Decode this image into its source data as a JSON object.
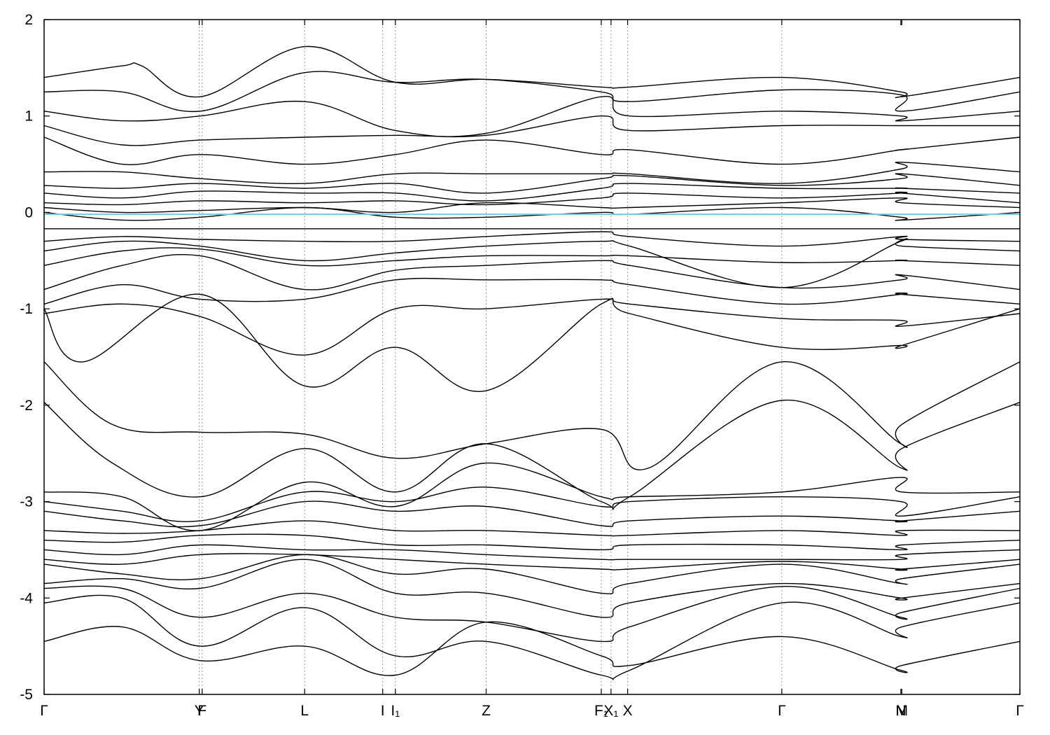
{
  "chart_data": {
    "type": "line",
    "title": "",
    "xlabel": "",
    "ylabel": "",
    "ylim": [
      -5,
      2
    ],
    "xlim": [
      0,
      1
    ],
    "yticks": [
      -5,
      -4,
      -3,
      -2,
      -1,
      0,
      1,
      2
    ],
    "ytick_labels": [
      "-5",
      "-4",
      "-3",
      "-2",
      "-1",
      "0",
      "1",
      "2"
    ],
    "kpoints": [
      {
        "label": "Γ",
        "x": 0.0,
        "line": false
      },
      {
        "label": "Y",
        "x": 0.159,
        "line": true
      },
      {
        "label": "F",
        "x": 0.162,
        "line": true
      },
      {
        "label": "L",
        "x": 0.267,
        "line": true
      },
      {
        "label": "I",
        "x": 0.347,
        "line": true
      },
      {
        "label": "I₁",
        "x": 0.36,
        "line": true
      },
      {
        "label": "Z",
        "x": 0.453,
        "line": true
      },
      {
        "label": "F₁",
        "x": 0.571,
        "line": true
      },
      {
        "label": "X₁",
        "x": 0.581,
        "line": true
      },
      {
        "label": "X",
        "x": 0.598,
        "line": true
      },
      {
        "label": "Γ",
        "x": 0.756,
        "line": true
      },
      {
        "label": "N",
        "x": 0.878,
        "line": false
      },
      {
        "label": "M",
        "x": 0.879,
        "line": false
      },
      {
        "label": "Γ",
        "x": 1.0,
        "line": false
      }
    ],
    "fermi_level": -0.02,
    "fermi_color": "#7fc6d6",
    "grid": false,
    "series": [
      {
        "x": [
          0,
          0.08,
          0.16,
          0.267,
          0.36,
          0.453,
          0.571,
          0.6,
          0.756,
          0.878,
          0.879,
          1
        ],
        "y": [
          -4.45,
          -4.3,
          -4.65,
          -4.5,
          -4.8,
          -4.25,
          -4.6,
          -4.7,
          -4.4,
          -4.75,
          -4.7,
          -4.45
        ]
      },
      {
        "x": [
          0,
          0.08,
          0.16,
          0.267,
          0.36,
          0.453,
          0.571,
          0.6,
          0.756,
          0.878,
          0.879,
          1
        ],
        "y": [
          -4.05,
          -4.0,
          -4.5,
          -4.1,
          -4.6,
          -4.45,
          -4.8,
          -4.75,
          -4.05,
          -4.4,
          -4.3,
          -4.05
        ]
      },
      {
        "x": [
          0,
          0.08,
          0.16,
          0.267,
          0.36,
          0.453,
          0.571,
          0.6,
          0.756,
          0.878,
          0.879,
          1
        ],
        "y": [
          -3.9,
          -3.9,
          -4.2,
          -3.95,
          -4.2,
          -4.25,
          -4.45,
          -4.3,
          -3.88,
          -4.2,
          -4.15,
          -3.9
        ]
      },
      {
        "x": [
          0,
          0.08,
          0.16,
          0.267,
          0.36,
          0.453,
          0.571,
          0.6,
          0.756,
          0.878,
          0.879,
          1
        ],
        "y": [
          -3.85,
          -3.8,
          -3.9,
          -3.6,
          -3.95,
          -3.95,
          -4.2,
          -4.05,
          -3.85,
          -4.0,
          -4.0,
          -3.85
        ]
      },
      {
        "x": [
          0,
          0.08,
          0.16,
          0.267,
          0.36,
          0.453,
          0.571,
          0.6,
          0.756,
          0.878,
          0.879,
          1
        ],
        "y": [
          -3.65,
          -3.75,
          -3.8,
          -3.55,
          -3.75,
          -3.7,
          -3.95,
          -3.85,
          -3.65,
          -3.85,
          -3.8,
          -3.65
        ]
      },
      {
        "x": [
          0,
          0.08,
          0.16,
          0.267,
          0.36,
          0.453,
          0.571,
          0.6,
          0.756,
          0.878,
          0.879,
          1
        ],
        "y": [
          -3.6,
          -3.65,
          -3.55,
          -3.55,
          -3.6,
          -3.65,
          -3.7,
          -3.7,
          -3.62,
          -3.7,
          -3.7,
          -3.6
        ]
      },
      {
        "x": [
          0,
          0.08,
          0.16,
          0.267,
          0.36,
          0.453,
          0.571,
          0.6,
          0.756,
          0.878,
          0.879,
          1
        ],
        "y": [
          -3.5,
          -3.55,
          -3.45,
          -3.5,
          -3.5,
          -3.55,
          -3.6,
          -3.6,
          -3.6,
          -3.6,
          -3.55,
          -3.5
        ]
      },
      {
        "x": [
          0,
          0.08,
          0.16,
          0.267,
          0.36,
          0.453,
          0.571,
          0.6,
          0.756,
          0.878,
          0.879,
          1
        ],
        "y": [
          -3.4,
          -3.42,
          -3.35,
          -3.35,
          -3.45,
          -3.45,
          -3.5,
          -3.45,
          -3.45,
          -3.5,
          -3.45,
          -3.4
        ]
      },
      {
        "x": [
          0,
          0.08,
          0.16,
          0.267,
          0.36,
          0.453,
          0.571,
          0.6,
          0.756,
          0.878,
          0.879,
          1
        ],
        "y": [
          -3.3,
          -3.33,
          -3.3,
          -3.2,
          -3.3,
          -3.3,
          -3.35,
          -3.35,
          -3.3,
          -3.35,
          -3.3,
          -3.3
        ]
      },
      {
        "x": [
          0,
          0.08,
          0.16,
          0.267,
          0.36,
          0.453,
          0.571,
          0.6,
          0.756,
          0.878,
          0.879,
          1
        ],
        "y": [
          -3.1,
          -3.2,
          -3.25,
          -3.0,
          -3.1,
          -3.05,
          -3.25,
          -3.2,
          -3.15,
          -3.2,
          -3.2,
          -3.1
        ]
      },
      {
        "x": [
          0,
          0.08,
          0.16,
          0.267,
          0.36,
          0.453,
          0.571,
          0.6,
          0.756,
          0.878,
          0.879,
          1
        ],
        "y": [
          -3.0,
          -3.1,
          -3.2,
          -2.9,
          -3.0,
          -2.85,
          -3.05,
          -3.0,
          -2.95,
          -3.0,
          -3.15,
          -2.95
        ]
      },
      {
        "x": [
          0,
          0.08,
          0.16,
          0.267,
          0.36,
          0.453,
          0.571,
          0.6,
          0.756,
          0.878,
          0.879,
          1
        ],
        "y": [
          -2.9,
          -2.95,
          -3.3,
          -2.8,
          -3.05,
          -2.6,
          -2.95,
          -2.95,
          -2.9,
          -2.75,
          -2.9,
          -2.9
        ]
      },
      {
        "x": [
          0,
          0.07,
          0.16,
          0.267,
          0.36,
          0.453,
          0.571,
          0.6,
          0.756,
          0.878,
          0.879,
          1
        ],
        "y": [
          -1.97,
          -2.6,
          -2.95,
          -2.45,
          -2.9,
          -2.4,
          -3.0,
          -2.95,
          -1.95,
          -2.65,
          -2.45,
          -1.97
        ]
      },
      {
        "x": [
          0,
          0.07,
          0.16,
          0.267,
          0.36,
          0.453,
          0.571,
          0.62,
          0.756,
          0.878,
          0.879,
          1
        ],
        "y": [
          -1.55,
          -2.2,
          -2.28,
          -2.3,
          -2.55,
          -2.4,
          -2.25,
          -2.65,
          -1.55,
          -2.4,
          -2.2,
          -1.55
        ]
      },
      {
        "x": [
          0,
          0.04,
          0.16,
          0.267,
          0.36,
          0.453,
          0.571,
          0.6,
          0.756,
          0.878,
          0.879,
          1
        ],
        "y": [
          -1.0,
          -1.55,
          -0.85,
          -1.8,
          -1.4,
          -1.85,
          -0.95,
          -1.05,
          -1.4,
          -1.38,
          -1.38,
          -1.0
        ]
      },
      {
        "x": [
          0,
          0.08,
          0.16,
          0.267,
          0.36,
          0.453,
          0.571,
          0.6,
          0.756,
          0.878,
          0.879,
          1
        ],
        "y": [
          -1.05,
          -0.95,
          -1.08,
          -1.48,
          -1.0,
          -1.0,
          -0.9,
          -0.95,
          -1.1,
          -1.12,
          -1.18,
          -1.05
        ]
      },
      {
        "x": [
          0,
          0.08,
          0.16,
          0.267,
          0.36,
          0.453,
          0.571,
          0.6,
          0.756,
          0.878,
          0.879,
          1
        ],
        "y": [
          -0.95,
          -0.75,
          -0.9,
          -0.9,
          -0.7,
          -0.7,
          -0.7,
          -0.75,
          -0.95,
          -0.85,
          -0.85,
          -0.95
        ]
      },
      {
        "x": [
          0,
          0.08,
          0.16,
          0.267,
          0.36,
          0.453,
          0.571,
          0.6,
          0.756,
          0.878,
          0.879,
          1
        ],
        "y": [
          -0.8,
          -0.55,
          -0.45,
          -0.8,
          -0.6,
          -0.55,
          -0.5,
          -0.55,
          -0.78,
          -0.7,
          -0.65,
          -0.8
        ]
      },
      {
        "x": [
          0,
          0.08,
          0.16,
          0.267,
          0.36,
          0.453,
          0.571,
          0.6,
          0.756,
          0.878,
          0.879,
          1
        ],
        "y": [
          -0.55,
          -0.4,
          -0.38,
          -0.55,
          -0.5,
          -0.45,
          -0.45,
          -0.45,
          -0.52,
          -0.5,
          -0.5,
          -0.55
        ]
      },
      {
        "x": [
          0,
          0.08,
          0.16,
          0.267,
          0.36,
          0.453,
          0.571,
          0.6,
          0.756,
          0.878,
          0.879,
          1
        ],
        "y": [
          -0.4,
          -0.3,
          -0.35,
          -0.5,
          -0.42,
          -0.35,
          -0.3,
          -0.35,
          -0.78,
          -0.3,
          -0.35,
          -0.4
        ]
      },
      {
        "x": [
          0,
          0.08,
          0.16,
          0.267,
          0.36,
          0.453,
          0.571,
          0.6,
          0.756,
          0.878,
          0.879,
          1
        ],
        "y": [
          -0.3,
          -0.25,
          -0.28,
          -0.3,
          -0.3,
          -0.25,
          -0.2,
          -0.25,
          -0.35,
          -0.25,
          -0.28,
          -0.3
        ]
      },
      {
        "x": [
          0,
          0.08,
          0.16,
          0.267,
          0.36,
          0.453,
          0.571,
          0.6,
          0.756,
          0.878,
          0.879,
          1
        ],
        "y": [
          -0.17,
          -0.17,
          -0.17,
          -0.17,
          -0.17,
          -0.17,
          -0.17,
          -0.17,
          -0.17,
          -0.17,
          -0.17,
          -0.17
        ]
      },
      {
        "x": [
          0,
          0.08,
          0.16,
          0.267,
          0.36,
          0.453,
          0.571,
          0.6,
          0.756,
          0.878,
          0.879,
          1
        ],
        "y": [
          0.0,
          -0.08,
          -0.05,
          0.05,
          -0.05,
          -0.05,
          0.0,
          -0.02,
          0.05,
          -0.05,
          -0.08,
          0.0
        ]
      },
      {
        "x": [
          0,
          0.08,
          0.16,
          0.267,
          0.36,
          0.453,
          0.571,
          0.6,
          0.756,
          0.878,
          0.879,
          1
        ],
        "y": [
          0.05,
          0.0,
          0.02,
          0.05,
          0.0,
          0.1,
          0.05,
          0.05,
          0.1,
          0.15,
          0.1,
          0.05
        ]
      },
      {
        "x": [
          0,
          0.08,
          0.16,
          0.267,
          0.36,
          0.453,
          0.571,
          0.6,
          0.756,
          0.878,
          0.879,
          1
        ],
        "y": [
          0.1,
          0.08,
          0.12,
          0.1,
          0.12,
          0.08,
          0.15,
          0.2,
          0.15,
          0.2,
          0.2,
          0.1
        ]
      },
      {
        "x": [
          0,
          0.08,
          0.16,
          0.267,
          0.36,
          0.453,
          0.571,
          0.6,
          0.756,
          0.878,
          0.879,
          1
        ],
        "y": [
          0.2,
          0.15,
          0.22,
          0.2,
          0.2,
          0.12,
          0.25,
          0.3,
          0.25,
          0.25,
          0.25,
          0.2
        ]
      },
      {
        "x": [
          0,
          0.08,
          0.16,
          0.267,
          0.36,
          0.453,
          0.571,
          0.6,
          0.756,
          0.878,
          0.879,
          1
        ],
        "y": [
          0.28,
          0.25,
          0.3,
          0.25,
          0.3,
          0.2,
          0.35,
          0.38,
          0.28,
          0.35,
          0.4,
          0.28
        ]
      },
      {
        "x": [
          0,
          0.08,
          0.16,
          0.267,
          0.36,
          0.453,
          0.571,
          0.6,
          0.756,
          0.878,
          0.879,
          1
        ],
        "y": [
          0.42,
          0.42,
          0.35,
          0.3,
          0.4,
          0.4,
          0.4,
          0.4,
          0.3,
          0.45,
          0.52,
          0.42
        ]
      },
      {
        "x": [
          0,
          0.08,
          0.16,
          0.267,
          0.36,
          0.453,
          0.571,
          0.6,
          0.756,
          0.878,
          0.879,
          1
        ],
        "y": [
          0.78,
          0.5,
          0.6,
          0.5,
          0.6,
          0.75,
          0.6,
          0.65,
          0.5,
          0.65,
          0.65,
          0.78
        ]
      },
      {
        "x": [
          0,
          0.08,
          0.16,
          0.267,
          0.36,
          0.453,
          0.571,
          0.6,
          0.756,
          0.878,
          0.879,
          1
        ],
        "y": [
          0.9,
          0.7,
          0.75,
          0.78,
          0.8,
          0.8,
          1.0,
          0.85,
          0.9,
          0.9,
          0.9,
          0.9
        ]
      },
      {
        "x": [
          0,
          0.08,
          0.16,
          0.267,
          0.36,
          0.453,
          0.571,
          0.6,
          0.756,
          0.878,
          0.879,
          1
        ],
        "y": [
          1.05,
          0.95,
          1.0,
          1.15,
          0.85,
          0.82,
          1.2,
          1.0,
          1.05,
          1.0,
          0.95,
          1.05
        ]
      },
      {
        "x": [
          0,
          0.08,
          0.16,
          0.267,
          0.36,
          0.453,
          0.571,
          0.6,
          0.756,
          0.878,
          0.879,
          1
        ],
        "y": [
          1.25,
          1.25,
          1.05,
          1.45,
          1.35,
          1.38,
          1.25,
          1.15,
          1.27,
          1.22,
          1.05,
          1.25
        ]
      },
      {
        "x": [
          0,
          0.08,
          0.1,
          0.16,
          0.267,
          0.36,
          0.453,
          0.571,
          0.6,
          0.756,
          0.878,
          0.879,
          1
        ],
        "y": [
          1.4,
          1.52,
          1.52,
          1.2,
          1.72,
          1.35,
          1.38,
          1.3,
          1.3,
          1.4,
          1.25,
          1.2,
          1.4
        ]
      }
    ]
  }
}
